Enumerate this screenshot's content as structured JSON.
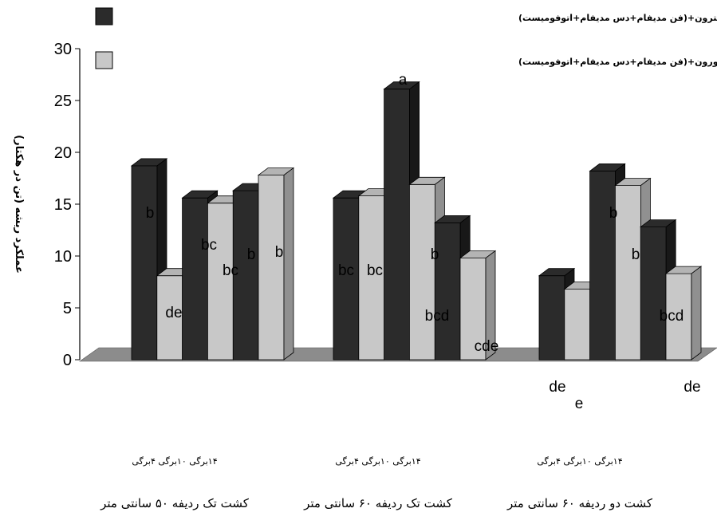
{
  "chart_data": {
    "type": "bar",
    "ylabel": "عملکرد ریشه (تن در هکتار)",
    "ylim": [
      0,
      30
    ],
    "yticks": [
      "0",
      "5",
      "10",
      "15",
      "20",
      "25",
      "30"
    ],
    "legend_position": "top",
    "series": [
      {
        "name": "متامیترون+(فن مدیفام+دس مدیفام+اتوفومیست)",
        "color": "#2b2b2b"
      },
      {
        "name": "تری فلوسولفورون+(فن مدیفام+دس مدیفام+اتوفومیست)",
        "color": "#c8c8c8"
      }
    ],
    "groups": [
      {
        "label": "کشت تک ردیفه ۵۰ سانتی متر",
        "sublabels": "۱۴برگی   ۱۰برگی   ۴برگی",
        "bars": [
          {
            "series": 0,
            "value": 18.7,
            "label": "b"
          },
          {
            "series": 1,
            "value": 8.1,
            "label": "de"
          },
          {
            "series": 0,
            "value": 15.6,
            "label": "bc"
          },
          {
            "series": 1,
            "value": 15.1,
            "label": "bc"
          },
          {
            "series": 0,
            "value": 16.3,
            "label": "b"
          },
          {
            "series": 1,
            "value": 17.8,
            "label": "b"
          }
        ]
      },
      {
        "label": "کشت تک ردیفه ۶۰ سانتی متر",
        "sublabels": "۱۴برگی   ۱۰برگی   ۴برگی",
        "bars": [
          {
            "series": 0,
            "value": 15.6,
            "label": "bc"
          },
          {
            "series": 1,
            "value": 15.8,
            "label": "bc"
          },
          {
            "series": 0,
            "value": 26.1,
            "label": "a"
          },
          {
            "series": 1,
            "value": 16.9,
            "label": "b"
          },
          {
            "series": 0,
            "value": 13.2,
            "label": "bcd"
          },
          {
            "series": 1,
            "value": 9.8,
            "label": "cde"
          }
        ]
      },
      {
        "label": "کشت دو ردیفه ۶۰ سانتی متر",
        "sublabels": "۱۴برگی   ۱۰برگی   ۴برگی",
        "bars": [
          {
            "series": 0,
            "value": 8.1,
            "label": "de"
          },
          {
            "series": 1,
            "value": 6.8,
            "label": "e"
          },
          {
            "series": 0,
            "value": 18.2,
            "label": "b"
          },
          {
            "series": 1,
            "value": 16.8,
            "label": "b"
          },
          {
            "series": 0,
            "value": 12.8,
            "label": "bcd"
          },
          {
            "series": 1,
            "value": 8.3,
            "label": "de"
          }
        ]
      }
    ]
  }
}
